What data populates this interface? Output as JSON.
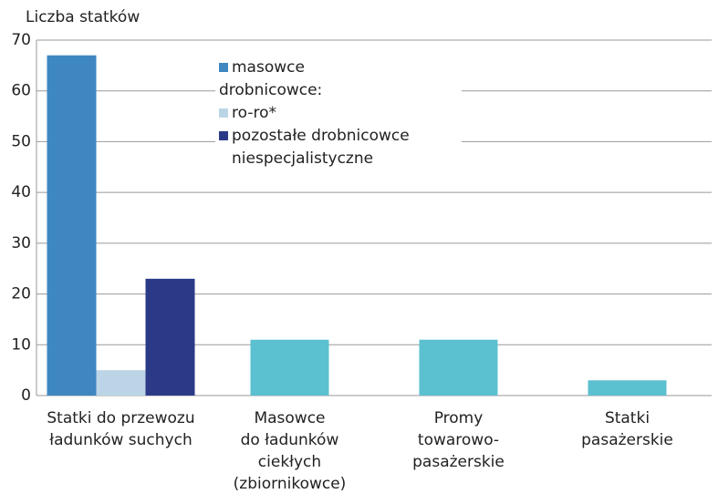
{
  "chart_data": {
    "type": "bar",
    "y_label": "Liczba statków",
    "categories": [
      [
        "Statki do przewozu",
        "ładunków suchych"
      ],
      [
        "Masowce",
        "do ładunków",
        "ciekłych",
        "(zbiornikowce)"
      ],
      [
        "Promy",
        "towarowo-",
        "pasażerskie"
      ],
      [
        "Statki",
        "pasażerskie"
      ]
    ],
    "legend_group_label": "drobnicowce:",
    "series": [
      {
        "name": "masowce",
        "color": "#3e87c1",
        "values": [
          67,
          null,
          null,
          null
        ]
      },
      {
        "name": "ro-ro*",
        "color": "#bcd5e6",
        "values": [
          5,
          null,
          null,
          null
        ]
      },
      {
        "name": "pozostałe drobnicowce niespecjalistyczne",
        "color": "#2b3a87",
        "values": [
          23,
          null,
          null,
          null
        ]
      },
      {
        "color": "#5bc0d0",
        "values": [
          null,
          11,
          11,
          3
        ]
      }
    ],
    "ylim": [
      0,
      70
    ],
    "yticks": [
      0,
      10,
      20,
      30,
      40,
      50,
      60,
      70
    ],
    "grid": true
  }
}
